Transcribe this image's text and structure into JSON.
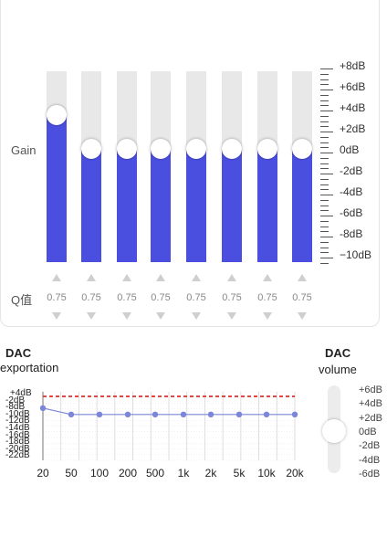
{
  "eq": {
    "gain_label": "Gain",
    "q_label": "Q值",
    "bands": [
      {
        "gain_db": 3.2,
        "q": "0.75"
      },
      {
        "gain_db": 0,
        "q": "0.75"
      },
      {
        "gain_db": 0,
        "q": "0.75"
      },
      {
        "gain_db": 0,
        "q": "0.75"
      },
      {
        "gain_db": 0,
        "q": "0.75"
      },
      {
        "gain_db": 0,
        "q": "0.75"
      },
      {
        "gain_db": 0,
        "q": "0.75"
      },
      {
        "gain_db": 0,
        "q": "0.75"
      }
    ],
    "scale_labels": [
      "+8dB",
      "+6dB",
      "+4dB",
      "+2dB",
      "0dB",
      "-2dB",
      "-4dB",
      "-6dB",
      "-8dB",
      "−10dB"
    ],
    "colors": {
      "fill": "#4b4fe0",
      "track": "#e8e8e8"
    }
  },
  "dac_export": {
    "title": "DAC",
    "subtitle": "exportation",
    "y_labels": [
      "+4dB",
      "-2dB",
      "-8dB",
      "-10dB",
      "-12dB",
      "-14dB",
      "-16dB",
      "-18dB",
      "-20dB",
      "-22dB"
    ],
    "freq_labels": [
      "20",
      "50",
      "100",
      "200",
      "500",
      "1k",
      "2k",
      "5k",
      "10k",
      "20k"
    ],
    "curve_db": [
      1.5,
      -1.0,
      -1.0,
      -1.0,
      -1.0,
      -1.0,
      -1.0,
      -1.0,
      -1.0,
      -1.0
    ],
    "colors": {
      "curve": "#7b86d8",
      "dash": "#e04848"
    }
  },
  "dac_volume": {
    "title": "DAC",
    "subtitle": "volume",
    "labels": [
      "+6dB",
      "+4dB",
      "+2dB",
      "0dB",
      "-2dB",
      "-4dB",
      "-6dB"
    ],
    "value_db": 0
  }
}
